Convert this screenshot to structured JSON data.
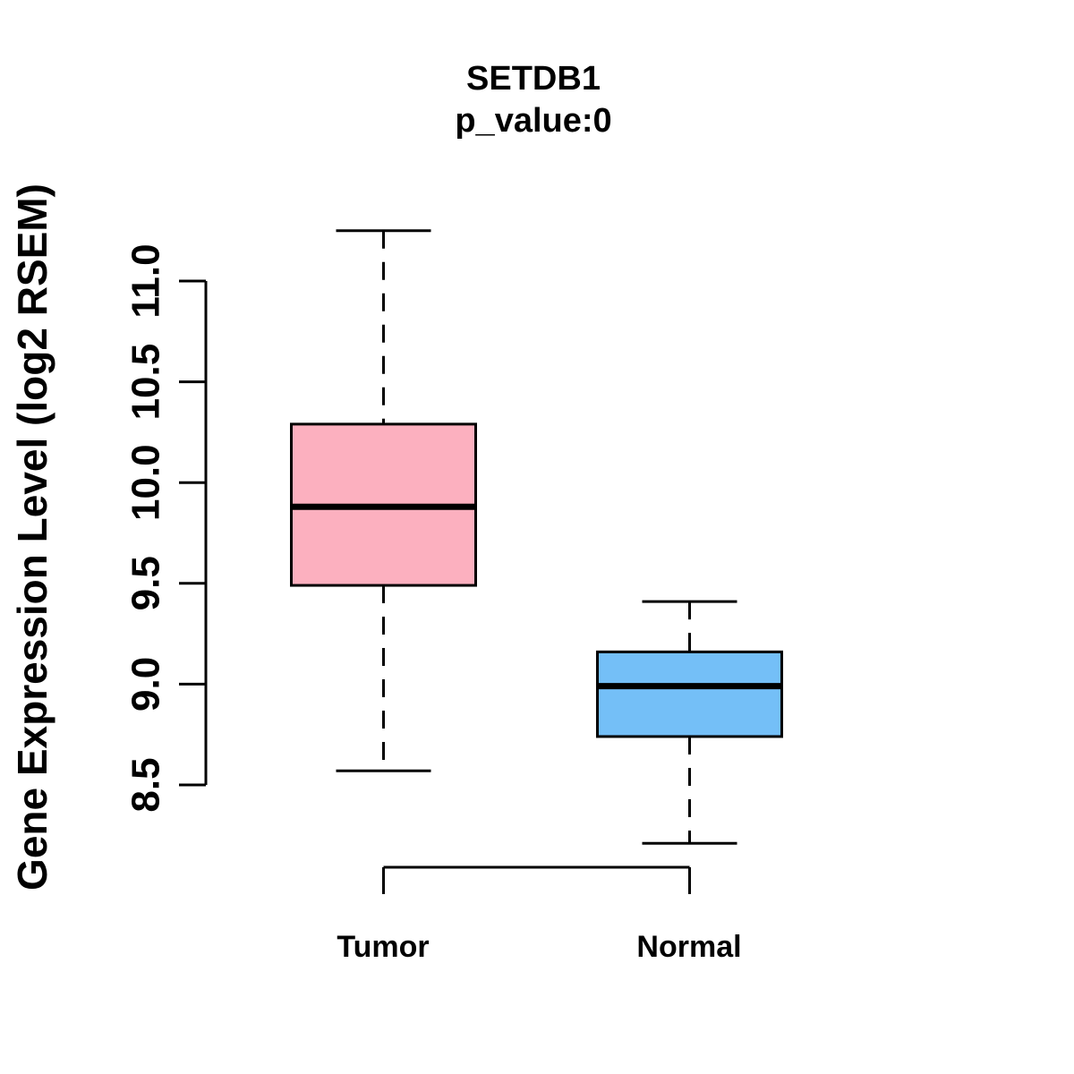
{
  "header": {
    "title": "SETDB1",
    "subtitle": "p_value:0"
  },
  "y_axis": {
    "label": "Gene Expression Level (log2 RSEM)",
    "tick_labels": [
      "8.5",
      "9.0",
      "9.5",
      "10.0",
      "10.5",
      "11.0"
    ]
  },
  "x_axis": {
    "categories": [
      "Tumor",
      "Normal"
    ]
  },
  "colors": {
    "background": "#FFFFFF",
    "stroke": "#000000",
    "text": "#000000",
    "tumor_fill": "#FCB0BF",
    "normal_fill": "#74BFF7"
  },
  "chart_data": {
    "type": "boxplot",
    "title": "SETDB1",
    "subtitle": "p_value:0",
    "ylabel": "Gene Expression Level (log2 RSEM)",
    "xlabel": "",
    "categories": [
      "Tumor",
      "Normal"
    ],
    "y_ticks": [
      8.5,
      9.0,
      9.5,
      10.0,
      10.5,
      11.0
    ],
    "ylim": [
      8.1,
      11.35
    ],
    "grid": false,
    "legend": false,
    "series": [
      {
        "name": "Tumor",
        "fill": "#FCB0BF",
        "whisker_low": 8.57,
        "q1": 9.49,
        "median": 9.88,
        "q3": 10.29,
        "whisker_high": 11.25
      },
      {
        "name": "Normal",
        "fill": "#74BFF7",
        "whisker_low": 8.21,
        "q1": 8.74,
        "median": 8.99,
        "q3": 9.16,
        "whisker_high": 9.41
      }
    ]
  }
}
